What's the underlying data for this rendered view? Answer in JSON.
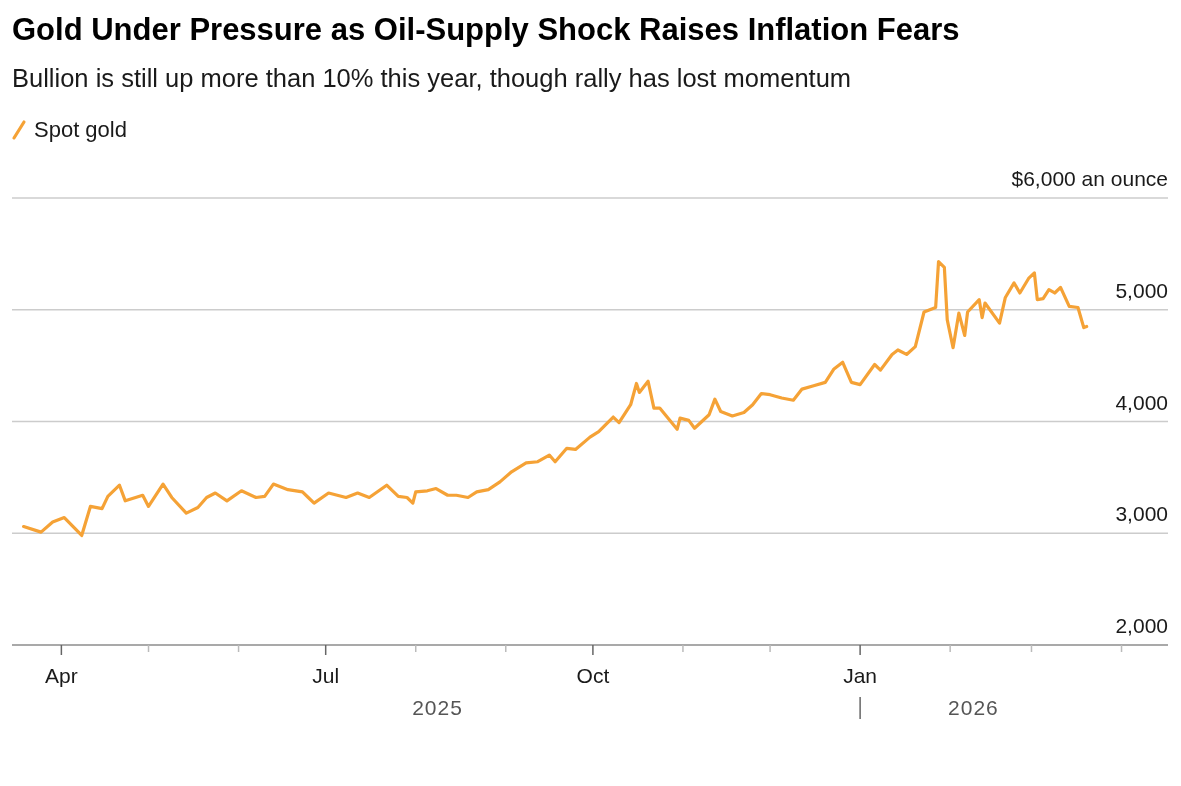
{
  "chart_data": {
    "type": "line",
    "title": "Gold Under Pressure as Oil-Supply Shock Raises Inflation Fears",
    "subtitle": "Bullion is still up more than 10% this year, though rally has lost momentum",
    "legend": "top left",
    "grid": "y",
    "marker": "none",
    "line_style": "solid",
    "xlim": [
      "2025-03-15",
      "2026-04-17"
    ],
    "xticks": [
      {
        "value": "2025-04-01",
        "label": "Apr"
      },
      {
        "value": "2025-05-01",
        "label": null
      },
      {
        "value": "2025-06-01",
        "label": null
      },
      {
        "value": "2025-07-01",
        "label": "Jul"
      },
      {
        "value": "2025-08-01",
        "label": null
      },
      {
        "value": "2025-09-01",
        "label": null
      },
      {
        "value": "2025-10-01",
        "label": "Oct"
      },
      {
        "value": "2025-11-01",
        "label": null
      },
      {
        "value": "2025-12-01",
        "label": null
      },
      {
        "value": "2026-01-01",
        "label": "Jan"
      },
      {
        "value": "2026-02-01",
        "label": null
      },
      {
        "value": "2026-03-01",
        "label": null
      },
      {
        "value": "2026-04-01",
        "label": null
      }
    ],
    "ylim": [
      2000,
      6000
    ],
    "yticks": [
      {
        "value": 2000,
        "label": "2,000"
      },
      {
        "value": 3000,
        "label": "3,000"
      },
      {
        "value": 4000,
        "label": "4,000"
      },
      {
        "value": 5000,
        "label": "5,000"
      },
      {
        "value": 6000,
        "label": "$6,000 an ounce"
      }
    ],
    "annotations": [
      "2025",
      "2026"
    ],
    "x": [
      "2025-03-19",
      "2025-03-25",
      "2025-03-29",
      "2025-04-02",
      "2025-04-08",
      "2025-04-11",
      "2025-04-15",
      "2025-04-17",
      "2025-04-21",
      "2025-04-23",
      "2025-04-29",
      "2025-05-01",
      "2025-05-06",
      "2025-05-09",
      "2025-05-14",
      "2025-05-18",
      "2025-05-21",
      "2025-05-24",
      "2025-05-28",
      "2025-06-02",
      "2025-06-07",
      "2025-06-10",
      "2025-06-13",
      "2025-06-18",
      "2025-06-23",
      "2025-06-25",
      "2025-06-27",
      "2025-07-02",
      "2025-07-08",
      "2025-07-12",
      "2025-07-16",
      "2025-07-22",
      "2025-07-26",
      "2025-07-29",
      "2025-07-31",
      "2025-08-01",
      "2025-08-05",
      "2025-08-08",
      "2025-08-12",
      "2025-08-15",
      "2025-08-19",
      "2025-08-22",
      "2025-08-26",
      "2025-08-30",
      "2025-09-03",
      "2025-09-08",
      "2025-09-12",
      "2025-09-16",
      "2025-09-18",
      "2025-09-22",
      "2025-09-25",
      "2025-09-30",
      "2025-10-03",
      "2025-10-08",
      "2025-10-10",
      "2025-10-14",
      "2025-10-16",
      "2025-10-17",
      "2025-10-20",
      "2025-10-22",
      "2025-10-24",
      "2025-10-30",
      "2025-10-31",
      "2025-11-03",
      "2025-11-05",
      "2025-11-10",
      "2025-11-12",
      "2025-11-14",
      "2025-11-18",
      "2025-11-22",
      "2025-11-25",
      "2025-11-28",
      "2025-12-01",
      "2025-12-05",
      "2025-12-09",
      "2025-12-12",
      "2025-12-16",
      "2025-12-20",
      "2025-12-23",
      "2025-12-26",
      "2025-12-29",
      "2026-01-01",
      "2026-01-06",
      "2026-01-08",
      "2026-01-12",
      "2026-01-14",
      "2026-01-17",
      "2026-01-20",
      "2026-01-23",
      "2026-01-27",
      "2026-01-28",
      "2026-01-30",
      "2026-01-31",
      "2026-02-02",
      "2026-02-04",
      "2026-02-06",
      "2026-02-07",
      "2026-02-11",
      "2026-02-12",
      "2026-02-13",
      "2026-02-18",
      "2026-02-20",
      "2026-02-23",
      "2026-02-25",
      "2026-02-28",
      "2026-03-02",
      "2026-03-03",
      "2026-03-05",
      "2026-03-07",
      "2026-03-09",
      "2026-03-11",
      "2026-03-14",
      "2026-03-17",
      "2026-03-19",
      "2026-03-20"
    ],
    "series": [
      {
        "name": "Spot gold",
        "color": "#f5a236",
        "values": [
          3060,
          3010,
          3100,
          3140,
          2980,
          3240,
          3220,
          3330,
          3430,
          3290,
          3340,
          3240,
          3440,
          3320,
          3180,
          3230,
          3320,
          3360,
          3290,
          3380,
          3320,
          3330,
          3440,
          3390,
          3370,
          3320,
          3270,
          3360,
          3320,
          3360,
          3320,
          3430,
          3330,
          3320,
          3270,
          3370,
          3380,
          3400,
          3340,
          3340,
          3320,
          3370,
          3390,
          3460,
          3550,
          3630,
          3640,
          3700,
          3640,
          3760,
          3750,
          3860,
          3910,
          4040,
          3990,
          4150,
          4340,
          4260,
          4360,
          4120,
          4120,
          3930,
          4030,
          4010,
          3940,
          4060,
          4200,
          4090,
          4050,
          4080,
          4150,
          4250,
          4240,
          4210,
          4190,
          4290,
          4320,
          4350,
          4470,
          4530,
          4350,
          4330,
          4510,
          4460,
          4600,
          4640,
          4600,
          4670,
          4980,
          5020,
          5430,
          5380,
          4910,
          4660,
          4970,
          4770,
          4980,
          5090,
          4930,
          5060,
          4880,
          5110,
          5240,
          5150,
          5280,
          5330,
          5090,
          5100,
          5180,
          5150,
          5200,
          5030,
          5020,
          4840,
          4850
        ]
      }
    ]
  }
}
